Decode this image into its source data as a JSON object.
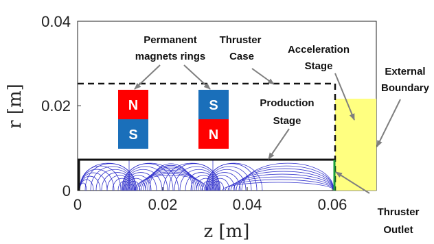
{
  "axes": {
    "xlabel": "z [m]",
    "ylabel": "r [m]",
    "x_ticks": [
      "0",
      "0.02",
      "0.04",
      "0.06"
    ],
    "y_ticks": [
      "0",
      "0.02",
      "0.04"
    ]
  },
  "annotations": {
    "permanent_magnets": [
      "Permanent",
      "magnets rings"
    ],
    "thruster_case": [
      "Thruster",
      "Case"
    ],
    "acceleration_stage": [
      "Acceleration",
      "Stage"
    ],
    "external_boundary": [
      "External",
      "Boundary"
    ],
    "production_stage": [
      "Production",
      "Stage"
    ],
    "thruster_outlet": [
      "Thruster",
      "Outlet"
    ]
  },
  "magnets": [
    {
      "top": "N",
      "bottom": "S",
      "top_color": "#ff0000",
      "bottom_color": "#1a6fba"
    },
    {
      "top": "S",
      "bottom": "N",
      "top_color": "#1a6fba",
      "bottom_color": "#ff0000"
    }
  ],
  "colors": {
    "field_lines": "#3333cc",
    "external_region": "#ffff80",
    "outlet": "#1a9e3a",
    "arrow": "#7f7f7f"
  }
}
